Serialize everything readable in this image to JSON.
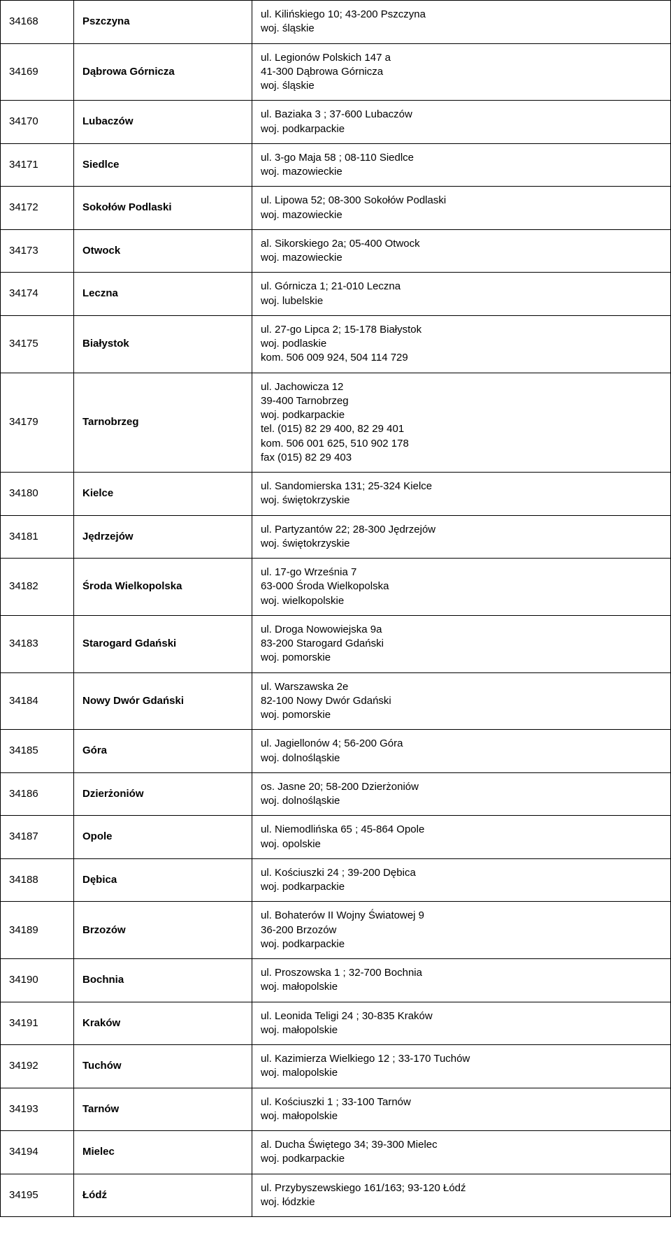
{
  "table": {
    "columns": {
      "id_width": 80,
      "city_width": 230
    },
    "rows": [
      {
        "id": "34168",
        "city": "Pszczyna",
        "address": [
          "ul. Kilińskiego 10; 43-200 Pszczyna",
          "woj. śląskie"
        ]
      },
      {
        "id": "34169",
        "city": "Dąbrowa Górnicza",
        "address": [
          "ul. Legionów Polskich 147 a",
          "41-300 Dąbrowa Górnicza",
          "woj. śląskie"
        ]
      },
      {
        "id": "34170",
        "city": "Lubaczów",
        "address": [
          "ul. Baziaka 3 ; 37-600 Lubaczów",
          "woj. podkarpackie"
        ]
      },
      {
        "id": "34171",
        "city": "Siedlce",
        "address": [
          "ul. 3-go Maja 58 ; 08-110 Siedlce",
          "woj. mazowieckie"
        ]
      },
      {
        "id": "34172",
        "city": "Sokołów Podlaski",
        "address": [
          "ul. Lipowa 52; 08-300 Sokołów Podlaski",
          "woj. mazowieckie"
        ]
      },
      {
        "id": "34173",
        "city": "Otwock",
        "address": [
          "al. Sikorskiego 2a; 05-400 Otwock",
          "woj. mazowieckie"
        ]
      },
      {
        "id": "34174",
        "city": "Leczna",
        "address": [
          "ul. Górnicza 1; 21-010 Leczna",
          "woj. lubelskie"
        ]
      },
      {
        "id": "34175",
        "city": "Białystok",
        "address": [
          "ul. 27-go Lipca 2; 15-178 Białystok",
          "woj. podlaskie",
          "kom. 506 009 924, 504 114 729"
        ]
      },
      {
        "id": "34179",
        "city": "Tarnobrzeg",
        "address": [
          "ul. Jachowicza 12",
          "39-400 Tarnobrzeg",
          "woj. podkarpackie",
          "tel. (015) 82 29 400, 82 29 401",
          "kom. 506 001 625, 510 902 178",
          "fax (015) 82 29 403"
        ]
      },
      {
        "id": "34180",
        "city": "Kielce",
        "address": [
          "ul. Sandomierska 131; 25-324 Kielce",
          "woj. świętokrzyskie"
        ]
      },
      {
        "id": "34181",
        "city": "Jędrzejów",
        "address": [
          "ul. Partyzantów 22; 28-300 Jędrzejów",
          "woj. świętokrzyskie"
        ]
      },
      {
        "id": "34182",
        "city": "Środa Wielkopolska",
        "address": [
          "ul. 17-go Września 7",
          "63-000 Środa Wielkopolska",
          "woj. wielkopolskie"
        ]
      },
      {
        "id": "34183",
        "city": "Starogard Gdański",
        "address": [
          "ul. Droga Nowowiejska 9a",
          "83-200 Starogard Gdański",
          "woj. pomorskie"
        ]
      },
      {
        "id": "34184",
        "city": "Nowy Dwór Gdański",
        "address": [
          "ul. Warszawska 2e",
          "82-100 Nowy Dwór Gdański",
          "woj. pomorskie"
        ]
      },
      {
        "id": "34185",
        "city": "Góra",
        "address": [
          "ul. Jagiellonów 4; 56-200 Góra",
          "woj. dolnośląskie"
        ]
      },
      {
        "id": "34186",
        "city": "Dzierżoniów",
        "address": [
          "os. Jasne 20; 58-200 Dzierżoniów",
          "woj. dolnośląskie"
        ]
      },
      {
        "id": "34187",
        "city": "Opole",
        "address": [
          "ul. Niemodlińska 65 ; 45-864 Opole",
          "woj. opolskie"
        ]
      },
      {
        "id": "34188",
        "city": "Dębica",
        "address": [
          "ul. Kościuszki 24 ; 39-200 Dębica",
          "woj. podkarpackie"
        ]
      },
      {
        "id": "34189",
        "city": "Brzozów",
        "address": [
          "ul. Bohaterów II Wojny Światowej 9",
          "36-200 Brzozów",
          "woj. podkarpackie"
        ]
      },
      {
        "id": "34190",
        "city": "Bochnia",
        "address": [
          "ul. Proszowska 1 ; 32-700 Bochnia",
          "woj. małopolskie"
        ]
      },
      {
        "id": "34191",
        "city": "Kraków",
        "address": [
          "ul. Leonida Teligi 24 ; 30-835 Kraków",
          "woj. małopolskie"
        ]
      },
      {
        "id": "34192",
        "city": "Tuchów",
        "address": [
          "ul. Kazimierza Wielkiego 12 ; 33-170 Tuchów",
          "woj. malopolskie"
        ]
      },
      {
        "id": "34193",
        "city": "Tarnów",
        "address": [
          "ul. Kościuszki 1 ; 33-100 Tarnów",
          "woj. małopolskie"
        ]
      },
      {
        "id": "34194",
        "city": "Mielec",
        "address": [
          "al. Ducha Świętego 34; 39-300 Mielec",
          "woj. podkarpackie"
        ]
      },
      {
        "id": "34195",
        "city": "Łódź",
        "address": [
          "ul. Przybyszewskiego 161/163; 93-120 Łódź",
          "woj. łódzkie"
        ]
      }
    ]
  }
}
